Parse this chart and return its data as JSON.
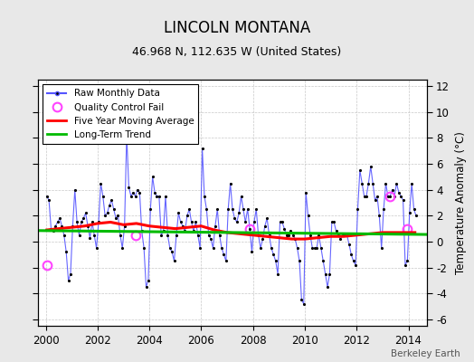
{
  "title": "LINCOLN MONTANA",
  "subtitle": "46.968 N, 112.635 W (United States)",
  "ylabel": "Temperature Anomaly (°C)",
  "xlim": [
    1999.7,
    2014.7
  ],
  "ylim": [
    -6.5,
    12.5
  ],
  "yticks_left": [
    -6,
    -4,
    -2,
    0,
    2,
    4,
    6,
    8,
    10,
    12
  ],
  "yticks_right": [
    -6,
    -4,
    -2,
    0,
    2,
    4,
    6,
    8,
    10,
    12
  ],
  "xticks": [
    2000,
    2002,
    2004,
    2006,
    2008,
    2010,
    2012,
    2014
  ],
  "background_color": "#e8e8e8",
  "plot_bg_color": "#ffffff",
  "grid_color": "#c8c8c8",
  "footer": "Berkeley Earth",
  "raw_color": "#5555ff",
  "moving_avg_color": "#ff0000",
  "trend_color": "#00bb00",
  "qc_color": "#ff44ff",
  "raw_months": [
    2000.042,
    2000.125,
    2000.208,
    2000.292,
    2000.375,
    2000.458,
    2000.542,
    2000.625,
    2000.708,
    2000.792,
    2000.875,
    2000.958,
    2001.042,
    2001.125,
    2001.208,
    2001.292,
    2001.375,
    2001.458,
    2001.542,
    2001.625,
    2001.708,
    2001.792,
    2001.875,
    2001.958,
    2002.042,
    2002.125,
    2002.208,
    2002.292,
    2002.375,
    2002.458,
    2002.542,
    2002.625,
    2002.708,
    2002.792,
    2002.875,
    2002.958,
    2003.042,
    2003.125,
    2003.208,
    2003.292,
    2003.375,
    2003.458,
    2003.542,
    2003.625,
    2003.708,
    2003.792,
    2003.875,
    2003.958,
    2004.042,
    2004.125,
    2004.208,
    2004.292,
    2004.375,
    2004.458,
    2004.542,
    2004.625,
    2004.708,
    2004.792,
    2004.875,
    2004.958,
    2005.042,
    2005.125,
    2005.208,
    2005.292,
    2005.375,
    2005.458,
    2005.542,
    2005.625,
    2005.708,
    2005.792,
    2005.875,
    2005.958,
    2006.042,
    2006.125,
    2006.208,
    2006.292,
    2006.375,
    2006.458,
    2006.542,
    2006.625,
    2006.708,
    2006.792,
    2006.875,
    2006.958,
    2007.042,
    2007.125,
    2007.208,
    2007.292,
    2007.375,
    2007.458,
    2007.542,
    2007.625,
    2007.708,
    2007.792,
    2007.875,
    2007.958,
    2008.042,
    2008.125,
    2008.208,
    2008.292,
    2008.375,
    2008.458,
    2008.542,
    2008.625,
    2008.708,
    2008.792,
    2008.875,
    2008.958,
    2009.042,
    2009.125,
    2009.208,
    2009.292,
    2009.375,
    2009.458,
    2009.542,
    2009.625,
    2009.708,
    2009.792,
    2009.875,
    2009.958,
    2010.042,
    2010.125,
    2010.208,
    2010.292,
    2010.375,
    2010.458,
    2010.542,
    2010.625,
    2010.708,
    2010.792,
    2010.875,
    2010.958,
    2011.042,
    2011.125,
    2011.208,
    2011.292,
    2011.375,
    2011.458,
    2011.542,
    2011.625,
    2011.708,
    2011.792,
    2011.875,
    2011.958,
    2012.042,
    2012.125,
    2012.208,
    2012.292,
    2012.375,
    2012.458,
    2012.542,
    2012.625,
    2012.708,
    2012.792,
    2012.875,
    2012.958,
    2013.042,
    2013.125,
    2013.208,
    2013.292,
    2013.375,
    2013.458,
    2013.542,
    2013.625,
    2013.708,
    2013.792,
    2013.875,
    2013.958,
    2014.042,
    2014.125,
    2014.208,
    2014.292
  ],
  "raw_values": [
    3.5,
    3.2,
    1.0,
    0.8,
    1.2,
    1.5,
    1.8,
    1.2,
    0.5,
    -0.8,
    -3.0,
    -2.5,
    1.2,
    4.0,
    1.5,
    0.5,
    1.5,
    1.8,
    2.2,
    1.2,
    0.3,
    1.5,
    0.5,
    -0.5,
    1.5,
    4.5,
    3.5,
    2.0,
    2.2,
    2.8,
    3.2,
    2.5,
    1.8,
    2.0,
    0.5,
    -0.5,
    1.2,
    8.2,
    4.2,
    3.5,
    3.8,
    3.5,
    4.0,
    3.8,
    0.8,
    -0.5,
    -3.5,
    -3.0,
    2.5,
    5.0,
    3.8,
    3.5,
    3.5,
    0.5,
    0.8,
    3.5,
    0.5,
    -0.5,
    -0.8,
    -1.5,
    0.5,
    2.2,
    1.5,
    1.2,
    0.8,
    2.0,
    2.5,
    1.5,
    0.8,
    1.5,
    0.5,
    -0.5,
    7.2,
    3.5,
    2.5,
    0.5,
    0.2,
    -0.5,
    1.2,
    2.5,
    0.5,
    -0.5,
    -1.0,
    -1.5,
    2.5,
    4.5,
    2.5,
    1.8,
    1.5,
    2.2,
    3.5,
    2.5,
    1.5,
    2.5,
    1.0,
    -0.8,
    1.5,
    2.5,
    0.5,
    -0.5,
    0.2,
    1.2,
    1.8,
    0.5,
    -0.5,
    -1.0,
    -1.5,
    -2.5,
    1.5,
    1.5,
    1.0,
    0.5,
    0.5,
    0.8,
    0.5,
    0.2,
    -0.5,
    -1.5,
    -4.5,
    -4.8,
    3.8,
    2.0,
    0.5,
    -0.5,
    -0.5,
    -0.5,
    0.5,
    -0.5,
    -1.5,
    -2.5,
    -3.5,
    -2.5,
    1.5,
    1.5,
    0.8,
    0.5,
    0.2,
    0.5,
    0.5,
    0.5,
    -0.2,
    -1.0,
    -1.5,
    -1.8,
    2.5,
    5.5,
    4.5,
    3.5,
    3.5,
    4.5,
    5.8,
    4.5,
    3.2,
    3.5,
    2.0,
    -0.5,
    2.5,
    4.5,
    3.5,
    3.5,
    4.0,
    3.5,
    4.5,
    3.8,
    3.5,
    3.2,
    -1.8,
    -1.5,
    2.2,
    4.5,
    2.5,
    2.0
  ],
  "qc_fail_x": [
    2000.042,
    2003.458,
    2007.875,
    2013.292,
    2013.958
  ],
  "qc_fail_y": [
    -1.8,
    0.5,
    1.0,
    3.5,
    1.0
  ],
  "moving_avg_x": [
    2000.042,
    2000.5,
    2001.0,
    2001.5,
    2002.0,
    2002.5,
    2003.0,
    2003.5,
    2004.0,
    2004.5,
    2005.0,
    2005.5,
    2006.0,
    2006.5,
    2007.0,
    2007.5,
    2008.0,
    2008.5,
    2009.0,
    2009.5,
    2010.0,
    2010.5,
    2011.0,
    2011.5,
    2012.0,
    2012.5,
    2013.0,
    2013.5,
    2014.0,
    2014.25
  ],
  "moving_avg_values": [
    0.9,
    1.0,
    1.1,
    1.2,
    1.4,
    1.5,
    1.3,
    1.4,
    1.2,
    1.1,
    1.0,
    1.1,
    1.2,
    0.9,
    0.7,
    0.6,
    0.5,
    0.4,
    0.3,
    0.2,
    0.2,
    0.3,
    0.4,
    0.4,
    0.5,
    0.6,
    0.7,
    0.7,
    0.7,
    0.7
  ],
  "trend_x": [
    1999.7,
    2014.7
  ],
  "trend_y": [
    0.85,
    0.55
  ]
}
